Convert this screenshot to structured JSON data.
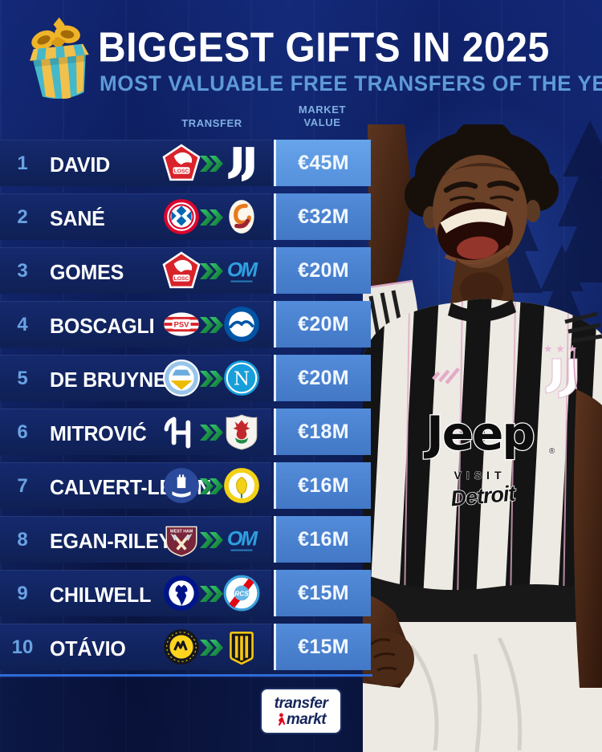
{
  "header": {
    "title": "BIGGEST GIFTS IN 2025",
    "subtitle": "MOST VALUABLE FREE TRANSFERS OF THE YEAR"
  },
  "table": {
    "columns": {
      "transfer": "TRANSFER",
      "market_value_line1": "MARKET",
      "market_value_line2": "VALUE"
    },
    "rows": [
      {
        "rank": "1",
        "player": "DAVID",
        "from_badge": "losc",
        "to_badge": "juventus",
        "value": "€45M"
      },
      {
        "rank": "2",
        "player": "SANÉ",
        "from_badge": "bayern",
        "to_badge": "galatasaray",
        "value": "€32M"
      },
      {
        "rank": "3",
        "player": "GOMES",
        "from_badge": "losc",
        "to_badge": "marseille",
        "value": "€20M"
      },
      {
        "rank": "4",
        "player": "BOSCAGLI",
        "from_badge": "psv",
        "to_badge": "brighton",
        "value": "€20M"
      },
      {
        "rank": "5",
        "player": "DE BRUYNE",
        "from_badge": "man-city",
        "to_badge": "napoli",
        "value": "€20M"
      },
      {
        "rank": "6",
        "player": "MITROVIĆ",
        "from_badge": "al-hilal",
        "to_badge": "al-rayyan",
        "value": "€18M"
      },
      {
        "rank": "7",
        "player": "CALVERT-LEWIN",
        "from_badge": "everton",
        "to_badge": "leeds",
        "value": "€16M"
      },
      {
        "rank": "8",
        "player": "EGAN-RILEY",
        "from_badge": "west-ham",
        "to_badge": "marseille",
        "value": "€16M"
      },
      {
        "rank": "9",
        "player": "CHILWELL",
        "from_badge": "chelsea",
        "to_badge": "strasbourg",
        "value": "€15M"
      },
      {
        "rank": "10",
        "player": "OTÁVIO",
        "from_badge": "al-nassr",
        "to_badge": "al-ittihad",
        "value": "€15M"
      }
    ]
  },
  "jersey": {
    "sponsor": "Jeep",
    "reg_mark": "®",
    "visit_line": "VISIT",
    "detroit_line": "Detroit",
    "stars": "★ ★ ★"
  },
  "footer": {
    "brand_line1": "transfer",
    "brand_line2": "markt"
  },
  "colors": {
    "background": "#0c1c55",
    "row_strip": "#12245f",
    "value_cell": "#4e88d8",
    "value_cell_top": "#5f9ce4",
    "rank_blue": "#69a2e2",
    "subtitle_blue": "#5e9ad8",
    "chevron_green": "#1fa552",
    "divider_blue": "#2e6cd9",
    "value_text": "#f2f8ff",
    "tm_navy": "#16265c",
    "tm_red": "#e3001b"
  }
}
